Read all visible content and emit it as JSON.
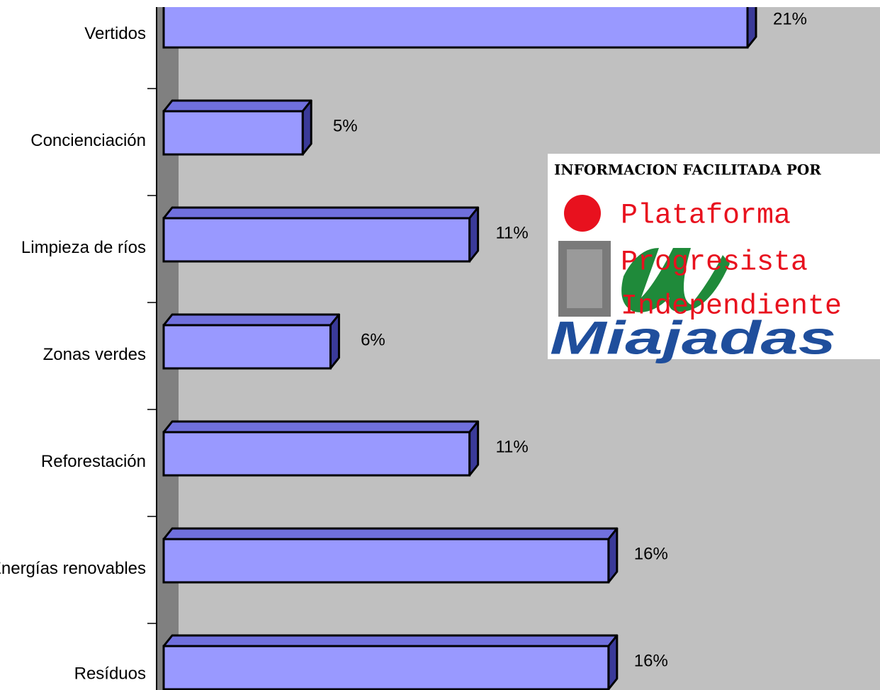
{
  "chart_data": {
    "type": "hbar3d",
    "categories": [
      "Vertidos",
      "Concienciación",
      "Limpieza de ríos",
      "Zonas verdes",
      "Reforestación",
      "Energías renovables",
      "Resíduos"
    ],
    "values": [
      21,
      5,
      11,
      6,
      11,
      16,
      16
    ],
    "value_labels": [
      "21%",
      "5%",
      "11%",
      "6%",
      "11%",
      "16%",
      "16%"
    ],
    "color": "#9999ff",
    "annotations": [
      "INFORMACION FACILITADA POR",
      "Plataforma",
      "Progresista",
      "Independiente",
      "Miajadas"
    ]
  }
}
